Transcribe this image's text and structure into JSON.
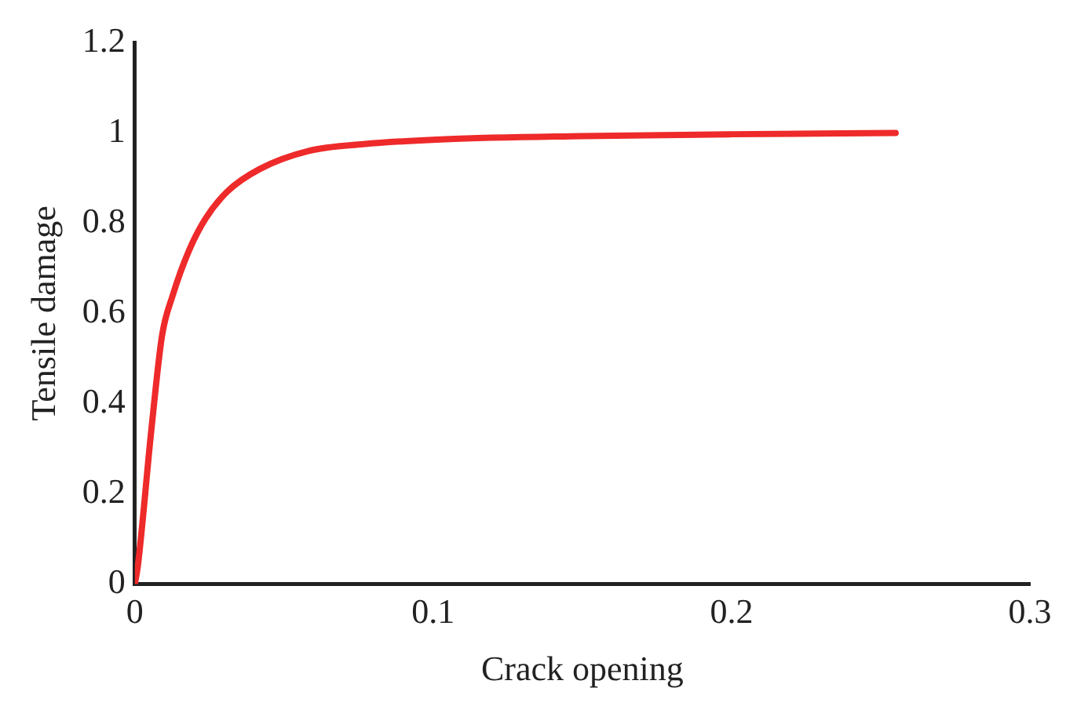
{
  "chart_data": {
    "type": "line",
    "xlabel": "Crack opening",
    "ylabel": "Tensile damage",
    "series": [
      {
        "color": "#ee2a2a",
        "x": [
          0,
          0.001,
          0.0055,
          0.0091,
          0.0127,
          0.0182,
          0.0237,
          0.031,
          0.0419,
          0.0583,
          0.0765,
          0.104,
          0.15,
          0.2,
          0.255
        ],
        "values": [
          0,
          0.04,
          0.34,
          0.55,
          0.64,
          0.74,
          0.81,
          0.87,
          0.92,
          0.96,
          0.975,
          0.986,
          0.993,
          0.997,
          1.0
        ]
      }
    ],
    "xlim": [
      0,
      0.3
    ],
    "xticks": [
      0,
      0.1,
      0.2,
      0.3
    ],
    "ylim": [
      0,
      1.2
    ],
    "yticks": [
      0,
      0.2,
      0.4,
      0.6,
      0.8,
      1,
      1.2
    ],
    "grid": false,
    "legend": false,
    "marker": "none"
  }
}
